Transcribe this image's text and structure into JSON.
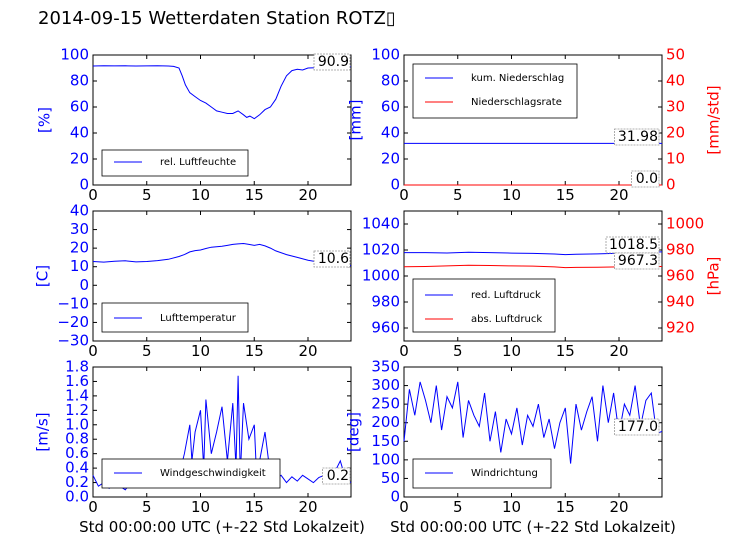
{
  "title": "2014-09-15 Wetterdaten Station ROTZ▯",
  "colors": {
    "left_axis": "#0000ff",
    "right_axis": "#ff0000",
    "humidity": "#0000ff",
    "temperature": "#0000ff",
    "wind_speed": "#0000ff",
    "wind_dir": "#0000ff",
    "precip": "#0000ff",
    "precip_rate": "#ff0000",
    "red_pressure": "#0000ff",
    "abs_pressure": "#ff0000"
  },
  "chart_data": [
    {
      "id": "humidity",
      "type": "line",
      "ylabel": "[%]",
      "xlim": [
        0,
        24
      ],
      "ylim": [
        0,
        100
      ],
      "xticks": [
        0,
        5,
        10,
        15,
        20
      ],
      "yticks": [
        0,
        20,
        40,
        60,
        80,
        100
      ],
      "legend": {
        "position": "lower-left",
        "entries": [
          "rel. Luftfeuchte"
        ]
      },
      "annotation": "90.9",
      "series": [
        {
          "name": "rel. Luftfeuchte",
          "x": [
            0,
            1,
            2,
            3,
            4,
            5,
            6,
            7,
            7.5,
            8,
            8.3,
            8.6,
            9,
            9.5,
            10,
            10.5,
            11,
            11.5,
            12,
            12.5,
            13,
            13.5,
            14,
            14.3,
            14.6,
            15,
            15.5,
            16,
            16.5,
            17,
            17.5,
            18,
            18.5,
            19,
            19.5,
            20,
            21,
            22,
            23,
            24
          ],
          "y": [
            91.5,
            91.8,
            91.6,
            91.7,
            91.5,
            91.6,
            91.8,
            91.5,
            91.2,
            90,
            84,
            77,
            71,
            68,
            65,
            63,
            60,
            57,
            56,
            55,
            55,
            57,
            54,
            52,
            53,
            51,
            54,
            58,
            60,
            66,
            76,
            84,
            88,
            89,
            88.5,
            90,
            90.3,
            90.6,
            90.8,
            90.9
          ]
        }
      ]
    },
    {
      "id": "precip",
      "type": "line",
      "ylabel": "[mm]",
      "ylabel_right": "[mm/std]",
      "xlim": [
        0,
        24
      ],
      "ylim": [
        0,
        100
      ],
      "ylim_right": [
        0,
        50
      ],
      "xticks": [
        0,
        5,
        10,
        15,
        20
      ],
      "yticks": [
        0,
        20,
        40,
        60,
        80,
        100
      ],
      "yticks_right": [
        0,
        10,
        20,
        30,
        40,
        50
      ],
      "legend": {
        "position": "upper-left",
        "entries": [
          "kum. Niederschlag",
          "Niederschlagsrate"
        ]
      },
      "annotations": [
        "31.98",
        "0.0"
      ],
      "series": [
        {
          "name": "kum. Niederschlag",
          "axis": "left",
          "x": [
            0,
            24
          ],
          "y": [
            31.98,
            31.98
          ]
        },
        {
          "name": "Niederschlagsrate",
          "axis": "right",
          "x": [
            0,
            24
          ],
          "y": [
            0,
            0
          ]
        }
      ]
    },
    {
      "id": "temperature",
      "type": "line",
      "ylabel": "[C]",
      "xlim": [
        0,
        24
      ],
      "ylim": [
        -30,
        40
      ],
      "xticks": [
        0,
        5,
        10,
        15,
        20
      ],
      "yticks": [
        -30,
        -20,
        -10,
        0,
        10,
        20,
        30,
        40
      ],
      "legend": {
        "position": "lower-left",
        "entries": [
          "Lufttemperatur"
        ]
      },
      "annotation": "10.6",
      "series": [
        {
          "name": "Lufttemperatur",
          "x": [
            0,
            1,
            2,
            3,
            4,
            5,
            6,
            7,
            8,
            8.5,
            9,
            9.5,
            10,
            10.5,
            11,
            11.5,
            12,
            12.5,
            13,
            13.5,
            14,
            14.5,
            15,
            15.5,
            16,
            16.5,
            17,
            18,
            19,
            20,
            21,
            22,
            23,
            24
          ],
          "y": [
            12.8,
            12.5,
            12.9,
            13.2,
            12.6,
            12.8,
            13.3,
            14,
            15.5,
            16.5,
            18,
            18.7,
            19,
            19.8,
            20.5,
            20.8,
            21,
            21.5,
            22,
            22.3,
            22.5,
            22,
            21.5,
            22,
            21.2,
            20,
            18.5,
            16.5,
            15,
            13.5,
            12.5,
            12,
            11,
            10.6
          ]
        }
      ]
    },
    {
      "id": "pressure",
      "type": "line",
      "ylabel_right": "[hPa]",
      "xlim": [
        0,
        24
      ],
      "ylim": [
        950,
        1050
      ],
      "ylim_right": [
        910,
        1010
      ],
      "xticks": [
        0,
        5,
        10,
        15,
        20
      ],
      "yticks": [
        960,
        980,
        1000,
        1020,
        1040
      ],
      "yticks_right": [
        920,
        940,
        960,
        980,
        1000
      ],
      "legend": {
        "position": "lower-left",
        "entries": [
          "red. Luftdruck",
          "abs. Luftdruck"
        ]
      },
      "annotations": [
        "1018.5",
        "967.3"
      ],
      "series": [
        {
          "name": "red. Luftdruck",
          "axis": "left",
          "x": [
            0,
            2,
            4,
            6,
            8,
            10,
            12,
            14,
            15,
            16,
            18,
            20,
            22,
            24
          ],
          "y": [
            1018,
            1018,
            1017.7,
            1018.2,
            1018,
            1017.6,
            1017.4,
            1016.9,
            1016.5,
            1016.7,
            1017,
            1017.5,
            1018.2,
            1018.5
          ]
        },
        {
          "name": "abs. Luftdruck",
          "axis": "right",
          "x": [
            0,
            2,
            4,
            6,
            8,
            10,
            12,
            14,
            15,
            16,
            18,
            20,
            22,
            24
          ],
          "y": [
            967.1,
            967.3,
            967.8,
            968.2,
            968.1,
            967.8,
            967.6,
            967,
            966.5,
            966.6,
            966.8,
            967,
            967.2,
            967.3
          ]
        }
      ]
    },
    {
      "id": "wind_speed",
      "type": "line",
      "ylabel": "[m/s]",
      "xlabel": "Std 00:00:00 UTC (+-22 Std Lokalzeit)",
      "xlim": [
        0,
        24
      ],
      "ylim": [
        0,
        1.8
      ],
      "xticks": [
        0,
        5,
        10,
        15,
        20
      ],
      "yticks": [
        0.0,
        0.2,
        0.4,
        0.6,
        0.8,
        1.0,
        1.2,
        1.4,
        1.6,
        1.8
      ],
      "legend": {
        "position": "lower-left",
        "entries": [
          "Windgeschwindigkeit"
        ]
      },
      "annotation": "0.2",
      "series": [
        {
          "name": "Windgeschwindigkeit",
          "x": [
            0,
            0.5,
            1,
            1.5,
            2,
            2.5,
            3,
            3.5,
            4,
            4.5,
            5,
            5.5,
            6,
            6.5,
            7,
            7.5,
            8,
            8.5,
            9,
            9.2,
            9.5,
            10,
            10.3,
            10.5,
            11,
            11.5,
            12,
            12.5,
            13,
            13.3,
            13.5,
            13.7,
            14,
            14.5,
            15,
            15.2,
            15.5,
            16,
            16.5,
            17,
            17.5,
            18,
            18.5,
            19,
            19.5,
            20,
            20.5,
            21,
            21.5,
            22,
            22.5,
            23,
            23.5,
            24
          ],
          "y": [
            0.3,
            0.15,
            0.2,
            0.12,
            0.25,
            0.15,
            0.1,
            0.2,
            0.15,
            0.3,
            0.18,
            0.35,
            0.2,
            0.4,
            0.25,
            0.5,
            0.3,
            0.6,
            1.0,
            0.5,
            0.9,
            1.2,
            0.4,
            1.35,
            0.6,
            0.9,
            1.25,
            0.5,
            1.3,
            0.4,
            1.68,
            0.3,
            1.3,
            0.8,
            1.0,
            0.35,
            0.5,
            0.9,
            0.3,
            0.25,
            0.3,
            0.2,
            0.28,
            0.22,
            0.3,
            0.25,
            0.2,
            0.27,
            0.3,
            0.2,
            0.35,
            0.5,
            0.25,
            0.2
          ]
        }
      ]
    },
    {
      "id": "wind_dir",
      "type": "line",
      "ylabel": "[deg]",
      "xlabel": "Std 00:00:00 UTC (+-22 Std Lokalzeit)",
      "xlim": [
        0,
        24
      ],
      "ylim": [
        0,
        350
      ],
      "xticks": [
        0,
        5,
        10,
        15,
        20
      ],
      "yticks": [
        0,
        50,
        100,
        150,
        200,
        250,
        300,
        350
      ],
      "legend": {
        "position": "lower-left",
        "entries": [
          "Windrichtung"
        ]
      },
      "annotation": "177.0",
      "series": [
        {
          "name": "Windrichtung",
          "x": [
            0,
            0.5,
            1,
            1.5,
            2,
            2.5,
            3,
            3.5,
            4,
            4.5,
            5,
            5.5,
            6,
            6.5,
            7,
            7.5,
            8,
            8.5,
            9,
            9.5,
            10,
            10.5,
            11,
            11.5,
            12,
            12.5,
            13,
            13.5,
            14,
            14.5,
            15,
            15.5,
            16,
            16.5,
            17,
            17.5,
            18,
            18.5,
            19,
            19.5,
            20,
            20.5,
            21,
            21.5,
            22,
            22.5,
            23,
            23.5,
            24
          ],
          "y": [
            150,
            290,
            220,
            310,
            260,
            200,
            300,
            180,
            270,
            240,
            310,
            160,
            260,
            220,
            190,
            280,
            150,
            230,
            120,
            210,
            170,
            240,
            140,
            220,
            190,
            250,
            160,
            210,
            130,
            200,
            240,
            90,
            250,
            180,
            230,
            270,
            150,
            300,
            200,
            280,
            170,
            250,
            220,
            300,
            190,
            260,
            280,
            170,
            177
          ]
        }
      ]
    }
  ]
}
